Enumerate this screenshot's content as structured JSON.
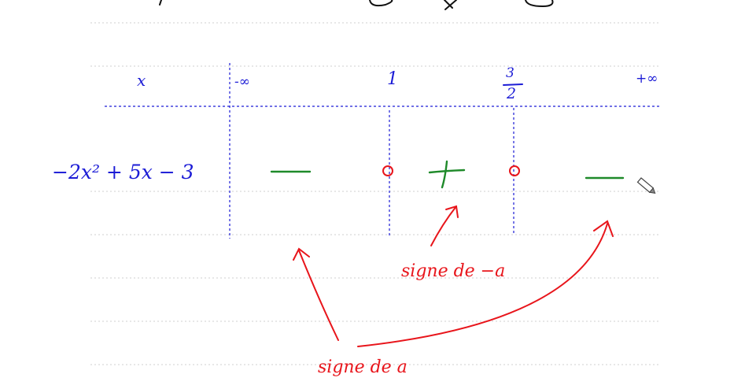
{
  "colors": {
    "ink_blue": "#1c1cd6",
    "ink_red": "#e8151b",
    "ink_green": "#1f8a2a",
    "ruled_line": "#cfcfcf"
  },
  "table": {
    "header_var": "x",
    "values": [
      "-∞",
      "1",
      "3",
      "2",
      "+∞"
    ],
    "row_expression": "−2x² + 5x − 3",
    "signs": [
      "—",
      "0",
      "+",
      "0",
      "—"
    ]
  },
  "annotations": {
    "inner_note": "signe de −a",
    "outer_note": "signe de a"
  },
  "tool_icon": "pencil-cursor-icon"
}
